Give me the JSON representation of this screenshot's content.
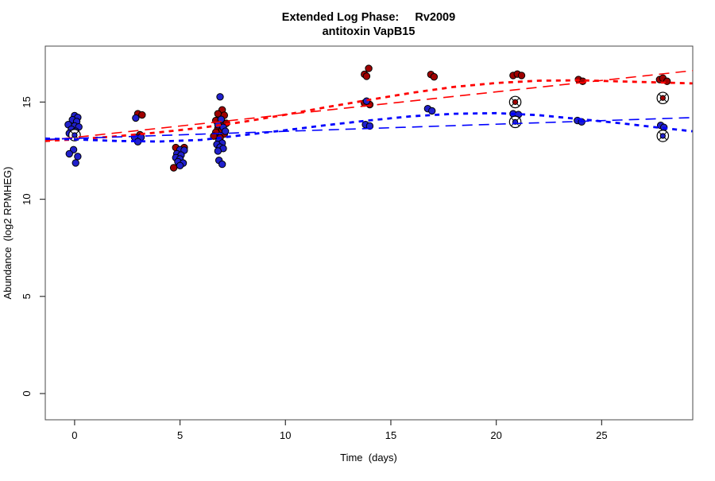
{
  "chart_data": {
    "type": "scatter",
    "title": "Extended Log Phase:     Rv2009",
    "subtitle": "antitoxin VapB15",
    "xlabel": "Time  (days)",
    "ylabel": "Abundance  (log2 RPMHEG)",
    "xlim": [
      -1.39,
      29.32
    ],
    "ylim": [
      -1.35,
      17.88
    ],
    "x_ticks": [
      0,
      5,
      10,
      15,
      20,
      25
    ],
    "y_ticks": [
      0,
      5,
      10,
      15
    ],
    "grid": false,
    "legend": "none",
    "colors": {
      "red_line": "#ff0000",
      "blue_line": "#0000ff",
      "red_point": "#a00000",
      "blue_point": "#2020cc",
      "point_stroke": "#000000",
      "box": "#4a4a4a",
      "tick": "#333333"
    },
    "series": [
      {
        "name": "red-points",
        "marker": "circle",
        "color": "#a00000",
        "points": [
          [
            3.0,
            14.4
          ],
          [
            3.2,
            14.34
          ],
          [
            3.1,
            13.32
          ],
          [
            4.8,
            12.66
          ],
          [
            5.2,
            12.66
          ],
          [
            4.7,
            11.62
          ],
          [
            7.0,
            14.6
          ],
          [
            6.8,
            14.4
          ],
          [
            7.1,
            14.32
          ],
          [
            6.7,
            14.05
          ],
          [
            7.0,
            13.98
          ],
          [
            7.2,
            13.91
          ],
          [
            6.8,
            13.64
          ],
          [
            7.0,
            13.57
          ],
          [
            6.7,
            13.45
          ],
          [
            7.1,
            13.36
          ],
          [
            6.6,
            13.25
          ],
          [
            6.9,
            13.16
          ],
          [
            13.95,
            16.73
          ],
          [
            13.75,
            16.43
          ],
          [
            13.85,
            16.33
          ],
          [
            13.75,
            14.95
          ],
          [
            14.0,
            14.87
          ],
          [
            16.9,
            16.42
          ],
          [
            17.05,
            16.3
          ],
          [
            20.8,
            16.37
          ],
          [
            21.0,
            16.44
          ],
          [
            21.2,
            16.37
          ],
          [
            23.9,
            16.16
          ],
          [
            24.1,
            16.07
          ],
          [
            27.75,
            16.16
          ],
          [
            27.9,
            16.23
          ],
          [
            28.1,
            16.07
          ]
        ]
      },
      {
        "name": "red-points-circled",
        "marker": "circled-dot",
        "color": "#a00000",
        "points": [
          [
            20.9,
            15.0
          ],
          [
            27.9,
            15.21
          ]
        ]
      },
      {
        "name": "blue-points",
        "marker": "circle",
        "color": "#2020cc",
        "points": [
          [
            0.0,
            14.3
          ],
          [
            0.15,
            14.21
          ],
          [
            -0.1,
            14.09
          ],
          [
            0.1,
            14.0
          ],
          [
            -0.3,
            13.84
          ],
          [
            0.0,
            13.77
          ],
          [
            0.2,
            13.72
          ],
          [
            -0.15,
            13.6
          ],
          [
            0.05,
            13.5
          ],
          [
            -0.25,
            13.39
          ],
          [
            0.1,
            13.32
          ],
          [
            -0.05,
            12.55
          ],
          [
            -0.25,
            12.34
          ],
          [
            0.15,
            12.2
          ],
          [
            0.05,
            11.87
          ],
          [
            2.9,
            14.18
          ],
          [
            2.85,
            13.19
          ],
          [
            3.15,
            13.19
          ],
          [
            3.0,
            12.96
          ],
          [
            5.0,
            12.55
          ],
          [
            5.2,
            12.52
          ],
          [
            4.85,
            12.34
          ],
          [
            5.05,
            12.27
          ],
          [
            4.8,
            12.14
          ],
          [
            5.0,
            12.07
          ],
          [
            4.9,
            11.93
          ],
          [
            5.15,
            11.86
          ],
          [
            5.0,
            11.73
          ],
          [
            6.9,
            15.27
          ],
          [
            6.95,
            14.11
          ],
          [
            6.8,
            13.84
          ],
          [
            7.05,
            13.7
          ],
          [
            7.15,
            13.5
          ],
          [
            6.85,
            13.02
          ],
          [
            7.0,
            12.89
          ],
          [
            6.75,
            12.82
          ],
          [
            6.9,
            12.68
          ],
          [
            7.05,
            12.61
          ],
          [
            6.8,
            12.48
          ],
          [
            6.85,
            12.0
          ],
          [
            7.0,
            11.8
          ],
          [
            13.85,
            15.05
          ],
          [
            13.8,
            13.84
          ],
          [
            14.0,
            13.77
          ],
          [
            16.75,
            14.66
          ],
          [
            16.95,
            14.55
          ],
          [
            20.8,
            14.4
          ],
          [
            21.05,
            14.36
          ],
          [
            23.85,
            14.05
          ],
          [
            24.05,
            13.98
          ],
          [
            27.8,
            13.8
          ],
          [
            27.95,
            13.7
          ]
        ]
      },
      {
        "name": "blue-points-circled",
        "marker": "circled-dot",
        "color": "#2020cc",
        "points": [
          [
            0.0,
            13.3
          ],
          [
            20.9,
            13.98
          ],
          [
            27.9,
            13.26
          ]
        ]
      }
    ],
    "lines": [
      {
        "name": "red-smooth-fit",
        "color": "#ff0000",
        "width": 2.8,
        "dash": "6 6",
        "points": [
          [
            -1.39,
            13.0
          ],
          [
            0,
            13.08
          ],
          [
            2,
            13.24
          ],
          [
            4,
            13.44
          ],
          [
            6,
            13.68
          ],
          [
            8,
            13.98
          ],
          [
            10,
            14.35
          ],
          [
            12,
            14.75
          ],
          [
            14,
            15.12
          ],
          [
            16,
            15.48
          ],
          [
            18,
            15.78
          ],
          [
            20,
            15.98
          ],
          [
            22,
            16.1
          ],
          [
            24,
            16.12
          ],
          [
            26,
            16.06
          ],
          [
            28,
            16.0
          ],
          [
            29.3,
            15.96
          ]
        ]
      },
      {
        "name": "red-linear-fit",
        "color": "#ff0000",
        "width": 1.6,
        "dash": "13 8",
        "points": [
          [
            -1.39,
            13.02
          ],
          [
            29.32,
            16.62
          ]
        ]
      },
      {
        "name": "blue-smooth-fit",
        "color": "#0000ff",
        "width": 2.8,
        "dash": "6 6",
        "points": [
          [
            -1.39,
            13.12
          ],
          [
            0,
            13.08
          ],
          [
            2,
            13.0
          ],
          [
            4,
            12.97
          ],
          [
            6,
            13.05
          ],
          [
            8,
            13.3
          ],
          [
            10,
            13.55
          ],
          [
            12,
            13.82
          ],
          [
            14,
            14.06
          ],
          [
            16,
            14.27
          ],
          [
            18,
            14.4
          ],
          [
            20,
            14.43
          ],
          [
            22,
            14.33
          ],
          [
            24,
            14.12
          ],
          [
            26,
            13.9
          ],
          [
            28,
            13.65
          ],
          [
            29.3,
            13.5
          ]
        ]
      },
      {
        "name": "blue-linear-fit",
        "color": "#0000ff",
        "width": 1.6,
        "dash": "13 8",
        "points": [
          [
            -1.39,
            13.08
          ],
          [
            29.32,
            14.2
          ]
        ]
      }
    ]
  }
}
